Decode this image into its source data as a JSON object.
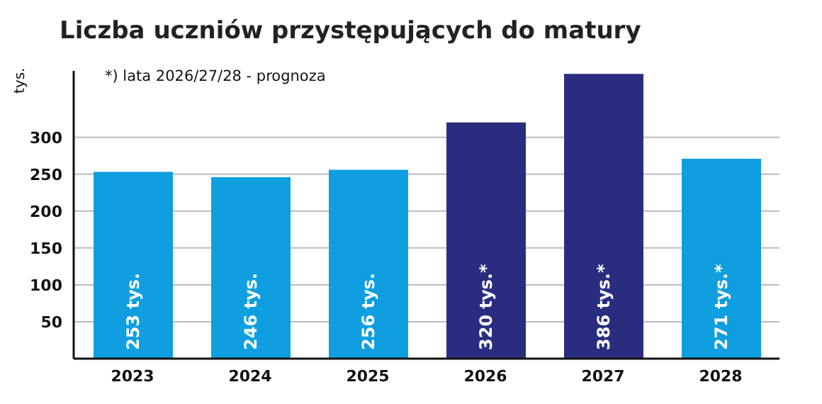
{
  "chart_data": {
    "type": "bar",
    "title": "Liczba uczniów przystępujących do matury",
    "ylabel": "tys.",
    "annotations": [
      "*) lata 2026/27/28 - prognoza"
    ],
    "categories": [
      "2023",
      "2024",
      "2025",
      "2026",
      "2027",
      "2028"
    ],
    "values": [
      253,
      246,
      256,
      320,
      386,
      271
    ],
    "colors": [
      "#0f9fe0",
      "#0f9fe0",
      "#0f9fe0",
      "#2a2d7f",
      "#2a2d7f",
      "#0f9fe0"
    ],
    "value_labels": [
      "253 tys.",
      "246 tys.",
      "256 tys.",
      "320 tys.*",
      "386 tys.*",
      "271 tys.*"
    ],
    "ylim": [
      0,
      390
    ],
    "yticks": [
      50,
      100,
      150,
      200,
      250,
      300
    ],
    "grid": "y"
  }
}
